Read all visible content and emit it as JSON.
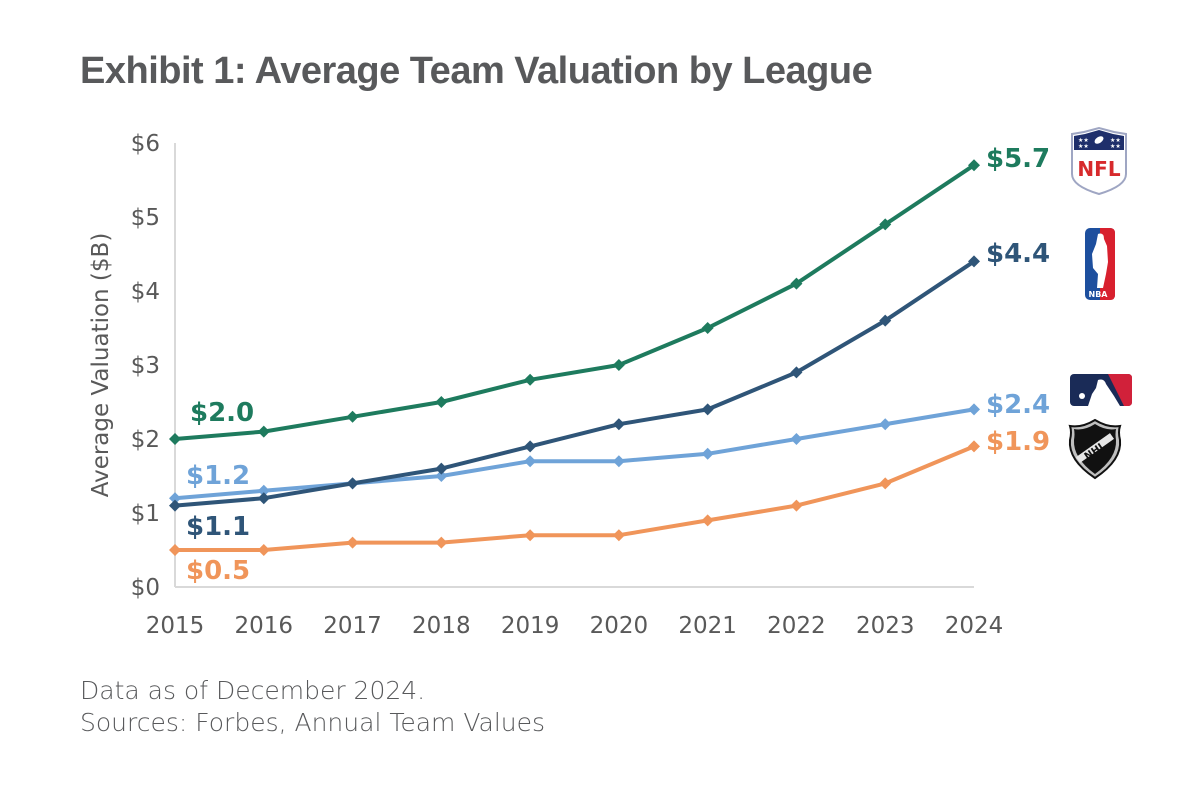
{
  "title": "Exhibit 1: Average Team Valuation by League",
  "footer": {
    "line1": "Data as of December 2024.",
    "line2": "Sources: Forbes, Annual Team Values"
  },
  "chart_data": {
    "type": "line",
    "title": "Exhibit 1: Average Team Valuation by League",
    "xlabel": "",
    "ylabel": "Average Valuation ($B)",
    "x": [
      "2015",
      "2016",
      "2017",
      "2018",
      "2019",
      "2020",
      "2021",
      "2022",
      "2023",
      "2024"
    ],
    "ylim": [
      0,
      6
    ],
    "yticks": [
      0,
      1,
      2,
      3,
      4,
      5,
      6
    ],
    "ytick_labels": [
      "$0",
      "$1",
      "$2",
      "$3",
      "$4",
      "$5",
      "$6"
    ],
    "grid": false,
    "marker": "diamond",
    "series": [
      {
        "name": "NFL",
        "color": "#1e7b5e",
        "values": [
          2.0,
          2.1,
          2.3,
          2.5,
          2.8,
          3.0,
          3.5,
          4.1,
          4.9,
          5.7
        ],
        "start_label": "$2.0",
        "end_label": "$5.7",
        "logo": "nfl-logo"
      },
      {
        "name": "NBA",
        "color": "#2f5578",
        "values": [
          1.1,
          1.2,
          1.4,
          1.6,
          1.9,
          2.2,
          2.4,
          2.9,
          3.6,
          4.4
        ],
        "start_label": "$1.1",
        "end_label": "$4.4",
        "logo": "nba-logo"
      },
      {
        "name": "MLB",
        "color": "#6fa3d8",
        "values": [
          1.2,
          1.3,
          1.4,
          1.5,
          1.7,
          1.7,
          1.8,
          2.0,
          2.2,
          2.4
        ],
        "start_label": "$1.2",
        "end_label": "$2.4",
        "logo": "mlb-logo"
      },
      {
        "name": "NHL",
        "color": "#f0955a",
        "values": [
          0.5,
          0.5,
          0.6,
          0.6,
          0.7,
          0.7,
          0.9,
          1.1,
          1.4,
          1.9
        ],
        "start_label": "$0.5",
        "end_label": "$1.9",
        "logo": "nhl-logo"
      }
    ],
    "logo_text": {
      "nfl": "NFL",
      "nba": "NBA",
      "nhl": "NHL"
    }
  }
}
